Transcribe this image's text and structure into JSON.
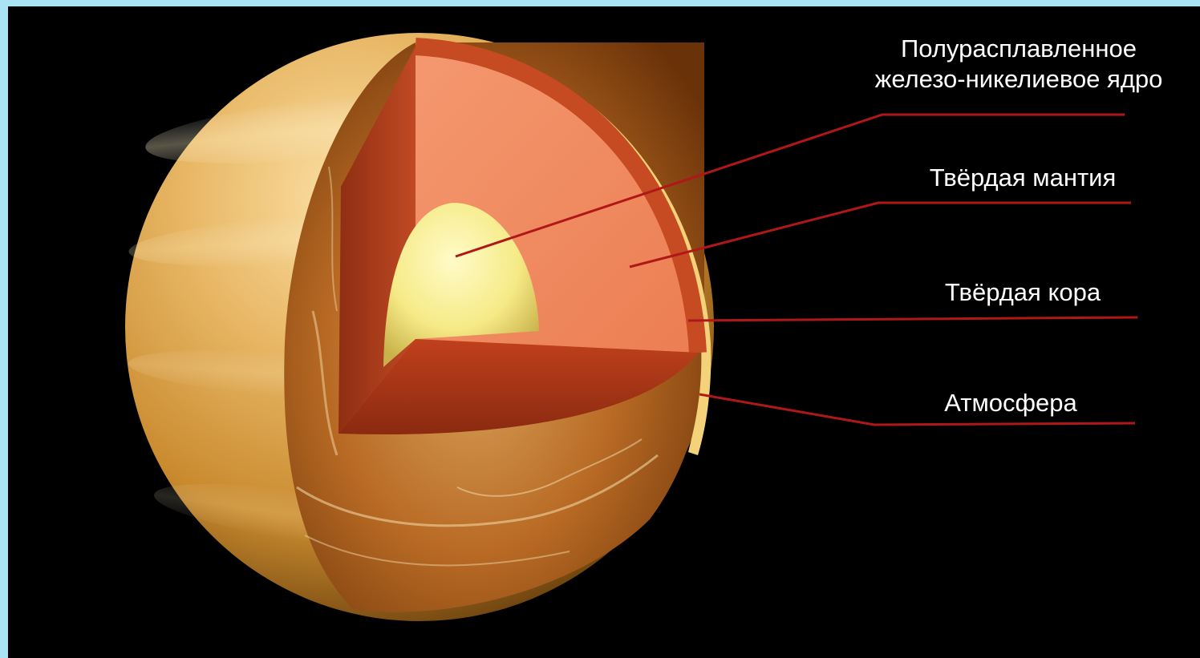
{
  "labels": {
    "core_line1": "Полурасплавленное",
    "core_line2": "железо-никелиевое ядро",
    "mantle": "Твёрдая мантия",
    "crust": "Твёрдая кора",
    "atmosphere": "Атмосфера"
  },
  "colors": {
    "frame": "#a9e3f4",
    "background": "#000000",
    "leader_line": "#b01818",
    "planet_surface": "#c98a2e",
    "mantle": "#f08a5c",
    "mantle_edge": "#c64a22",
    "core": "#f6ec8a",
    "label_text": "#ffffff"
  }
}
